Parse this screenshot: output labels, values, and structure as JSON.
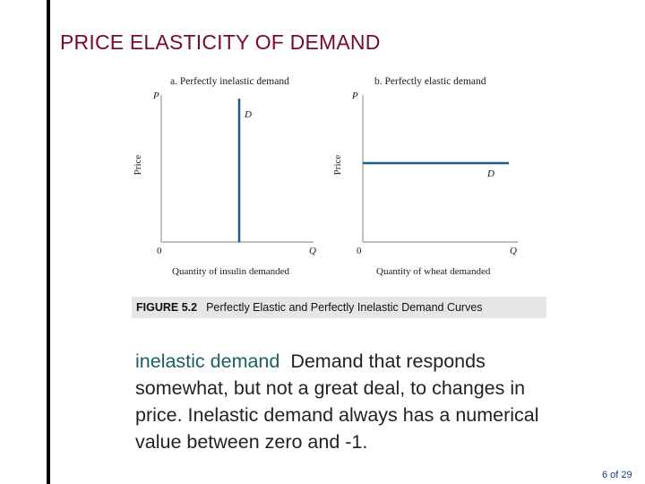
{
  "slide": {
    "title": "PRICE ELASTICITY OF DEMAND",
    "page_number": "6 of 29"
  },
  "figure": {
    "panel_a": {
      "title": "a. Perfectly inelastic demand",
      "y_axis_symbol": "P",
      "y_axis_label": "Price",
      "x_axis_symbol": "Q",
      "origin_label": "0",
      "curve_label": "D",
      "x_axis_label": "Quantity of insulin demanded"
    },
    "panel_b": {
      "title": "b. Perfectly elastic demand",
      "y_axis_symbol": "P",
      "y_axis_label": "Price",
      "x_axis_symbol": "Q",
      "origin_label": "0",
      "curve_label": "D",
      "x_axis_label": "Quantity of wheat demanded"
    },
    "colors": {
      "axis": "#999999",
      "curve": "#1f5f86"
    }
  },
  "caption": {
    "label": "FIGURE 5.2",
    "text": "Perfectly Elastic and Perfectly Inelastic Demand Curves"
  },
  "definition": {
    "term": "inelastic demand",
    "text": "Demand that responds somewhat, but not a great deal, to changes in price. Inelastic demand always has a numerical value between zero and -1."
  }
}
